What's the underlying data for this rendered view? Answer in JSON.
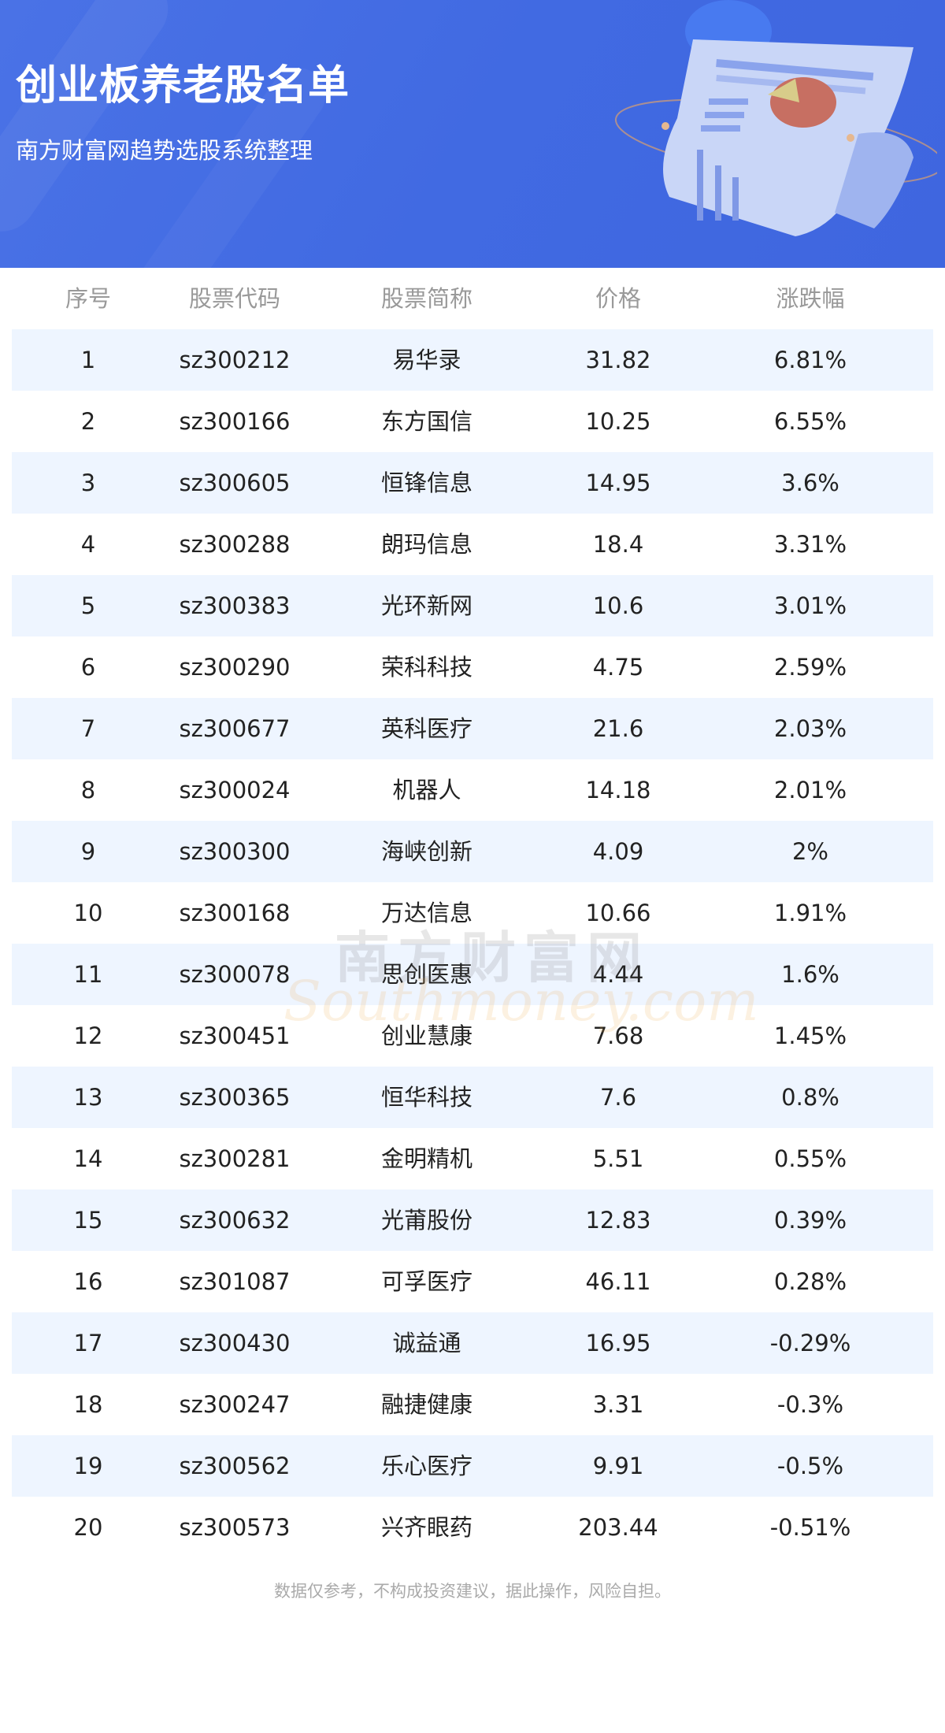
{
  "header": {
    "title": "创业板养老股名单",
    "subtitle": "南方财富网趋势选股系统整理",
    "background_color": "#4169e1"
  },
  "table": {
    "columns": [
      "序号",
      "股票代码",
      "股票简称",
      "价格",
      "涨跌幅"
    ],
    "rows": [
      [
        "1",
        "sz300212",
        "易华录",
        "31.82",
        "6.81%"
      ],
      [
        "2",
        "sz300166",
        "东方国信",
        "10.25",
        "6.55%"
      ],
      [
        "3",
        "sz300605",
        "恒锋信息",
        "14.95",
        "3.6%"
      ],
      [
        "4",
        "sz300288",
        "朗玛信息",
        "18.4",
        "3.31%"
      ],
      [
        "5",
        "sz300383",
        "光环新网",
        "10.6",
        "3.01%"
      ],
      [
        "6",
        "sz300290",
        "荣科科技",
        "4.75",
        "2.59%"
      ],
      [
        "7",
        "sz300677",
        "英科医疗",
        "21.6",
        "2.03%"
      ],
      [
        "8",
        "sz300024",
        "机器人",
        "14.18",
        "2.01%"
      ],
      [
        "9",
        "sz300300",
        "海峡创新",
        "4.09",
        "2%"
      ],
      [
        "10",
        "sz300168",
        "万达信息",
        "10.66",
        "1.91%"
      ],
      [
        "11",
        "sz300078",
        "思创医惠",
        "4.44",
        "1.6%"
      ],
      [
        "12",
        "sz300451",
        "创业慧康",
        "7.68",
        "1.45%"
      ],
      [
        "13",
        "sz300365",
        "恒华科技",
        "7.6",
        "0.8%"
      ],
      [
        "14",
        "sz300281",
        "金明精机",
        "5.51",
        "0.55%"
      ],
      [
        "15",
        "sz300632",
        "光莆股份",
        "12.83",
        "0.39%"
      ],
      [
        "16",
        "sz301087",
        "可孚医疗",
        "46.11",
        "0.28%"
      ],
      [
        "17",
        "sz300430",
        "诚益通",
        "16.95",
        "-0.29%"
      ],
      [
        "18",
        "sz300247",
        "融捷健康",
        "3.31",
        "-0.3%"
      ],
      [
        "19",
        "sz300562",
        "乐心医疗",
        "9.91",
        "-0.5%"
      ],
      [
        "20",
        "sz300573",
        "兴齐眼药",
        "203.44",
        "-0.51%"
      ]
    ],
    "stripe_color": "#eef5ff"
  },
  "watermark": {
    "cn": "南方财富网",
    "en": "Southmoney.com"
  },
  "footer": {
    "disclaimer": "数据仅参考，不构成投资建议，据此操作，风险自担。"
  }
}
